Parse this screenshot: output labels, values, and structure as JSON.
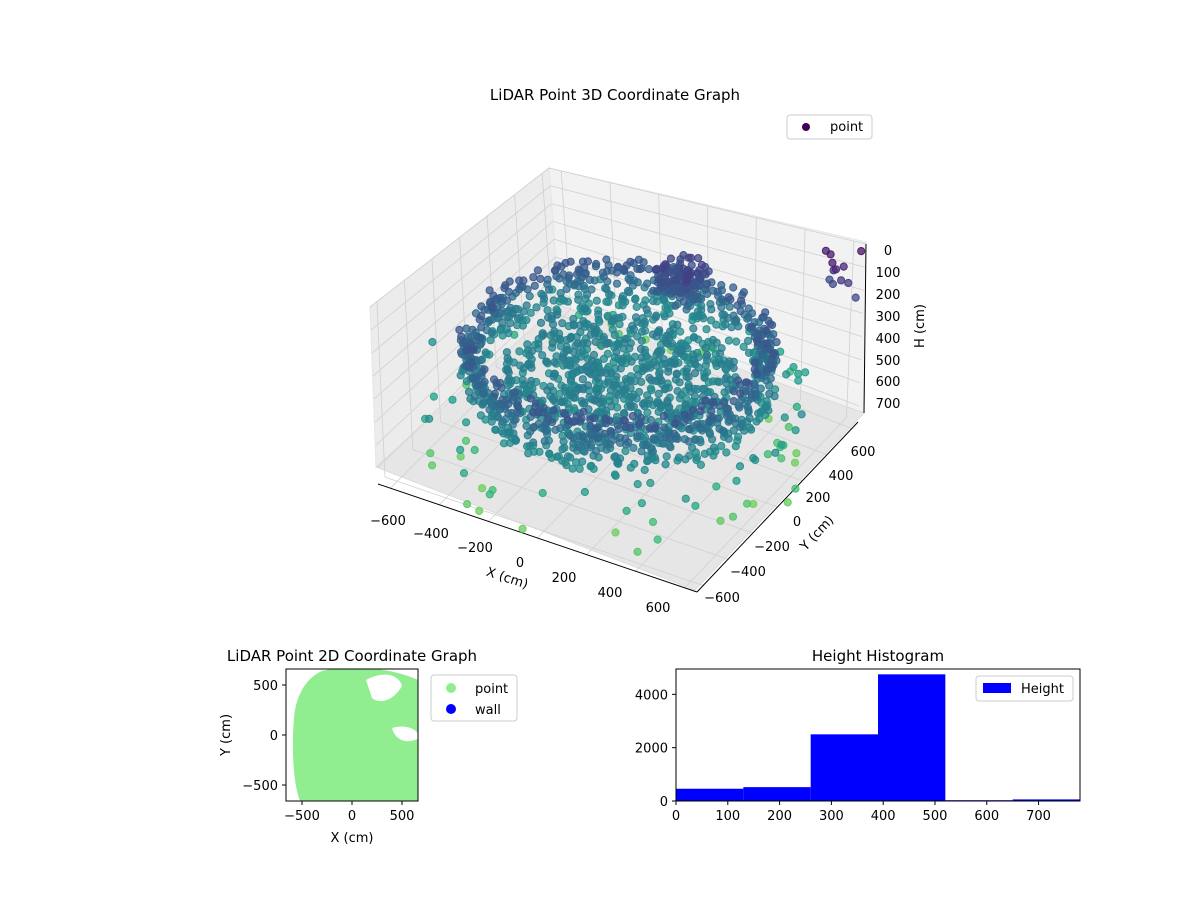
{
  "chart_data": [
    {
      "type": "scatter",
      "projection": "3d",
      "title": "LiDAR Point 3D Coordinate Graph",
      "xlabel": "X (cm)",
      "ylabel": "Y (cm)",
      "zlabel": "H (cm)",
      "x_ticks": [
        "−600",
        "−400",
        "−200",
        "0",
        "200",
        "400",
        "600"
      ],
      "y_ticks": [
        "−600",
        "−400",
        "−200",
        "0",
        "200",
        "400",
        "600"
      ],
      "z_ticks": [
        "0",
        "100",
        "200",
        "300",
        "400",
        "500",
        "600",
        "700"
      ],
      "xlim": [
        -650,
        650
      ],
      "ylim": [
        -650,
        650
      ],
      "zlim": [
        0,
        770
      ],
      "z_inverted": true,
      "colormap": "viridis",
      "series": [
        {
          "name": "point",
          "description_points": "ring of points approx radius 550 cm with dense inner disc, heights 0-770 cm"
        }
      ],
      "legend": {
        "position": "top-right",
        "entries": [
          "point"
        ],
        "colors": [
          "#440154"
        ]
      },
      "grid": true
    },
    {
      "type": "scatter",
      "title": "LiDAR Point 2D Coordinate Graph",
      "xlabel": "X (cm)",
      "ylabel": "Y (cm)",
      "x_ticks": [
        "−500",
        "0",
        "500"
      ],
      "y_ticks": [
        "500",
        "0",
        "−500"
      ],
      "xlim": [
        -650,
        650
      ],
      "ylim": [
        -650,
        650
      ],
      "series": [
        {
          "name": "point",
          "color": "#90ee90"
        },
        {
          "name": "wall",
          "color": "#0000ff"
        }
      ],
      "legend": {
        "position": "outside-right",
        "entries": [
          "point",
          "wall"
        ]
      }
    },
    {
      "type": "bar",
      "title": "Height Histogram",
      "bins": [
        {
          "from": 0,
          "to": 130,
          "count": 460
        },
        {
          "from": 130,
          "to": 260,
          "count": 520
        },
        {
          "from": 260,
          "to": 390,
          "count": 2500
        },
        {
          "from": 390,
          "to": 520,
          "count": 4750
        },
        {
          "from": 520,
          "to": 650,
          "count": 30
        },
        {
          "from": 650,
          "to": 780,
          "count": 60
        }
      ],
      "x_ticks": [
        "0",
        "100",
        "200",
        "300",
        "400",
        "500",
        "600",
        "700"
      ],
      "y_ticks": [
        "0",
        "2000",
        "4000"
      ],
      "xlim": [
        0,
        780
      ],
      "ylim": [
        0,
        4950
      ],
      "bar_color": "#0000ff",
      "series": [
        {
          "name": "Height"
        }
      ],
      "legend": {
        "position": "top-right",
        "entries": [
          "Height"
        ]
      }
    }
  ]
}
